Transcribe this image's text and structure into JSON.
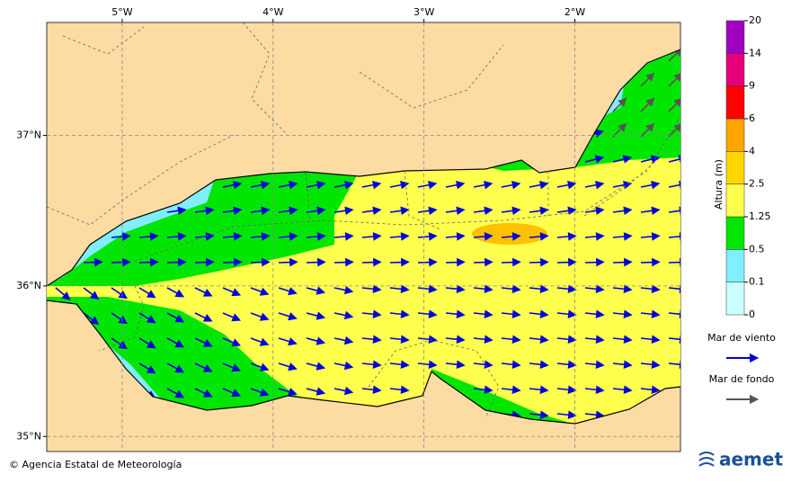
{
  "map": {
    "xlim": [
      -5.5,
      -1.3
    ],
    "ylim": [
      34.9,
      37.75
    ],
    "lon_ticks": [
      {
        "value": -5,
        "label": "5°W"
      },
      {
        "value": -4,
        "label": "4°W"
      },
      {
        "value": -3,
        "label": "3°W"
      },
      {
        "value": -2,
        "label": "2°W"
      }
    ],
    "lat_ticks": [
      {
        "value": 37,
        "label": "37°N"
      },
      {
        "value": 36,
        "label": "36°N"
      },
      {
        "value": 35,
        "label": "35°N"
      }
    ]
  },
  "colorbar": {
    "label": "Altura (m)",
    "levels": [
      0,
      0.1,
      0.5,
      1.25,
      2.5,
      4,
      6,
      9,
      14,
      20
    ],
    "colors": [
      "#ccffff",
      "#80eeff",
      "#00e600",
      "#ffff4d",
      "#ffd700",
      "#ffa500",
      "#ff0000",
      "#e6007a",
      "#a000c0"
    ]
  },
  "legend": {
    "items": [
      {
        "label": "Mar de viento",
        "color": "#0000dd"
      },
      {
        "label": "Mar de fondo",
        "color": "#555555"
      }
    ]
  },
  "footer": {
    "credit": "© Agencia Estatal de Meteorología",
    "logo": "aemet"
  }
}
